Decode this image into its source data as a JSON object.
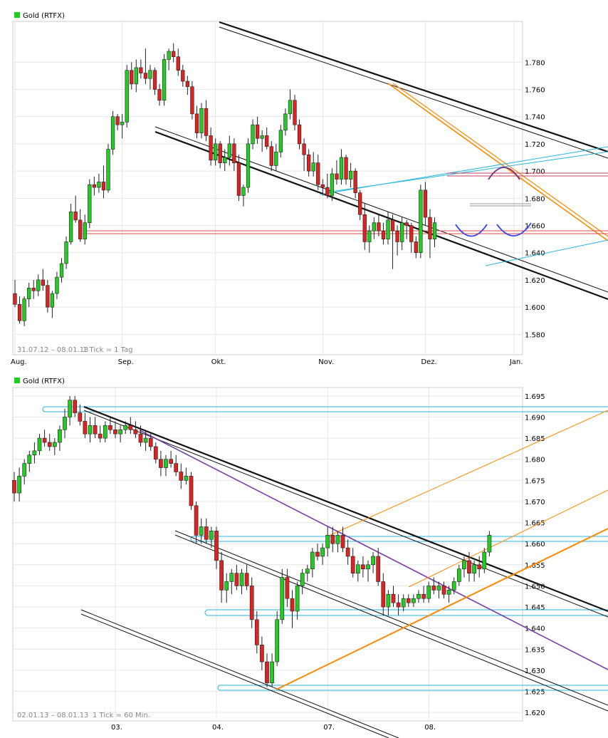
{
  "chart_data": [
    {
      "type": "candlestick",
      "title": "Gold (RTFX)",
      "legend": {
        "label": "Gold (RTFX)",
        "color": "#22cc22"
      },
      "period_label": "31.07.12 – 08.01.13",
      "tick_label": "1 Tick = 1 Tag",
      "ylim": [
        1565,
        1810
      ],
      "y_ticks": [
        1580,
        1600,
        1620,
        1640,
        1660,
        1680,
        1700,
        1720,
        1740,
        1760,
        1780
      ],
      "y_tick_labels": [
        "1.580",
        "1.600",
        "1.620",
        "1.640",
        "1.660",
        "1.680",
        "1.700",
        "1.720",
        "1.740",
        "1.760",
        "1.780"
      ],
      "x_ticks": [
        {
          "label": "Aug.",
          "index": 0
        },
        {
          "label": "Sep.",
          "index": 23
        },
        {
          "label": "Okt.",
          "index": 43
        },
        {
          "label": "Nov.",
          "index": 66
        },
        {
          "label": "Dez.",
          "index": 88
        },
        {
          "label": "Jan.",
          "index": 107
        }
      ],
      "colors": {
        "up": "#22cc22",
        "down": "#dd2222"
      },
      "candles": [
        [
          1610,
          1620,
          1600,
          1602
        ],
        [
          1602,
          1608,
          1588,
          1590
        ],
        [
          1590,
          1608,
          1586,
          1606
        ],
        [
          1606,
          1618,
          1600,
          1614
        ],
        [
          1614,
          1620,
          1606,
          1612
        ],
        [
          1612,
          1624,
          1608,
          1620
        ],
        [
          1620,
          1628,
          1612,
          1616
        ],
        [
          1616,
          1620,
          1596,
          1600
        ],
        [
          1600,
          1612,
          1592,
          1610
        ],
        [
          1610,
          1626,
          1606,
          1622
        ],
        [
          1622,
          1636,
          1618,
          1632
        ],
        [
          1632,
          1652,
          1628,
          1648
        ],
        [
          1648,
          1676,
          1646,
          1670
        ],
        [
          1670,
          1682,
          1662,
          1664
        ],
        [
          1664,
          1672,
          1648,
          1650
        ],
        [
          1650,
          1668,
          1646,
          1662
        ],
        [
          1662,
          1694,
          1658,
          1690
        ],
        [
          1690,
          1696,
          1682,
          1688
        ],
        [
          1688,
          1698,
          1684,
          1692
        ],
        [
          1692,
          1704,
          1680,
          1686
        ],
        [
          1686,
          1720,
          1684,
          1716
        ],
        [
          1716,
          1744,
          1712,
          1740
        ],
        [
          1740,
          1742,
          1730,
          1734
        ],
        [
          1734,
          1742,
          1724,
          1736
        ],
        [
          1736,
          1778,
          1732,
          1774
        ],
        [
          1774,
          1780,
          1760,
          1764
        ],
        [
          1764,
          1782,
          1758,
          1776
        ],
        [
          1776,
          1782,
          1768,
          1772
        ],
        [
          1772,
          1790,
          1764,
          1768
        ],
        [
          1768,
          1778,
          1760,
          1774
        ],
        [
          1774,
          1776,
          1756,
          1760
        ],
        [
          1760,
          1764,
          1748,
          1752
        ],
        [
          1752,
          1786,
          1748,
          1782
        ],
        [
          1782,
          1790,
          1774,
          1788
        ],
        [
          1788,
          1794,
          1780,
          1784
        ],
        [
          1784,
          1790,
          1770,
          1774
        ],
        [
          1774,
          1778,
          1762,
          1766
        ],
        [
          1766,
          1770,
          1756,
          1762
        ],
        [
          1762,
          1766,
          1738,
          1742
        ],
        [
          1742,
          1748,
          1724,
          1728
        ],
        [
          1728,
          1750,
          1724,
          1746
        ],
        [
          1746,
          1752,
          1722,
          1726
        ],
        [
          1726,
          1732,
          1704,
          1708
        ],
        [
          1708,
          1724,
          1704,
          1720
        ],
        [
          1720,
          1722,
          1702,
          1706
        ],
        [
          1706,
          1716,
          1700,
          1710
        ],
        [
          1710,
          1726,
          1704,
          1720
        ],
        [
          1720,
          1724,
          1700,
          1706
        ],
        [
          1706,
          1712,
          1678,
          1682
        ],
        [
          1682,
          1690,
          1674,
          1688
        ],
        [
          1688,
          1724,
          1684,
          1720
        ],
        [
          1720,
          1738,
          1716,
          1734
        ],
        [
          1734,
          1740,
          1720,
          1724
        ],
        [
          1724,
          1730,
          1714,
          1726
        ],
        [
          1726,
          1732,
          1716,
          1718
        ],
        [
          1718,
          1722,
          1700,
          1704
        ],
        [
          1704,
          1720,
          1700,
          1714
        ],
        [
          1714,
          1734,
          1710,
          1730
        ],
        [
          1730,
          1746,
          1726,
          1742
        ],
        [
          1742,
          1760,
          1738,
          1752
        ],
        [
          1752,
          1756,
          1730,
          1734
        ],
        [
          1734,
          1738,
          1716,
          1720
        ],
        [
          1720,
          1724,
          1700,
          1712
        ],
        [
          1712,
          1716,
          1696,
          1700
        ],
        [
          1700,
          1714,
          1696,
          1706
        ],
        [
          1706,
          1712,
          1686,
          1690
        ],
        [
          1690,
          1694,
          1682,
          1688
        ],
        [
          1688,
          1698,
          1680,
          1682
        ],
        [
          1682,
          1702,
          1678,
          1698
        ],
        [
          1698,
          1708,
          1690,
          1694
        ],
        [
          1694,
          1716,
          1690,
          1710
        ],
        [
          1710,
          1712,
          1690,
          1694
        ],
        [
          1694,
          1706,
          1688,
          1700
        ],
        [
          1700,
          1702,
          1680,
          1684
        ],
        [
          1684,
          1686,
          1664,
          1668
        ],
        [
          1668,
          1676,
          1642,
          1648
        ],
        [
          1648,
          1660,
          1640,
          1656
        ],
        [
          1656,
          1666,
          1650,
          1662
        ],
        [
          1662,
          1668,
          1652,
          1656
        ],
        [
          1656,
          1662,
          1646,
          1650
        ],
        [
          1650,
          1670,
          1646,
          1664
        ],
        [
          1664,
          1668,
          1628,
          1656
        ],
        [
          1656,
          1660,
          1638,
          1648
        ],
        [
          1648,
          1666,
          1642,
          1662
        ],
        [
          1662,
          1664,
          1650,
          1660
        ],
        [
          1660,
          1662,
          1640,
          1648
        ],
        [
          1648,
          1652,
          1636,
          1640
        ],
        [
          1640,
          1690,
          1636,
          1686
        ],
        [
          1686,
          1692,
          1660,
          1666
        ],
        [
          1666,
          1672,
          1636,
          1650
        ],
        [
          1650,
          1666,
          1644,
          1662
        ]
      ],
      "indicators": {
        "support_levels_red": [
          1646,
          1686
        ],
        "resistance_level_gray": 1666
      }
    },
    {
      "type": "candlestick",
      "title": "Gold (RTFX)",
      "legend": {
        "label": "Gold (RTFX)",
        "color": "#22cc22"
      },
      "period_label": "02.01.13 – 08.01.13",
      "tick_label": "1 Tick = 60 Min.",
      "ylim": [
        1618,
        1697
      ],
      "y_ticks": [
        1620,
        1625,
        1630,
        1635,
        1640,
        1645,
        1650,
        1655,
        1660,
        1665,
        1670,
        1675,
        1680,
        1685,
        1690,
        1695
      ],
      "y_tick_labels": [
        "1.620",
        "1.625",
        "1.630",
        "1.635",
        "1.640",
        "1.645",
        "1.650",
        "1.655",
        "1.660",
        "1.665",
        "1.670",
        "1.675",
        "1.680",
        "1.685",
        "1.690",
        "1.695"
      ],
      "x_ticks": [
        {
          "label": "03.",
          "index": 20
        },
        {
          "label": "04.",
          "index": 40
        },
        {
          "label": "07.",
          "index": 62
        },
        {
          "label": "08.",
          "index": 82
        }
      ],
      "colors": {
        "up": "#22cc22",
        "down": "#dd2222"
      },
      "candles": [
        [
          1675,
          1677,
          1670,
          1672
        ],
        [
          1672,
          1678,
          1670,
          1676
        ],
        [
          1676,
          1680,
          1674,
          1679
        ],
        [
          1679,
          1682,
          1677,
          1681
        ],
        [
          1681,
          1684,
          1679,
          1682
        ],
        [
          1682,
          1686,
          1681,
          1685
        ],
        [
          1685,
          1687,
          1683,
          1684
        ],
        [
          1684,
          1686,
          1682,
          1683
        ],
        [
          1683,
          1685,
          1681,
          1684
        ],
        [
          1684,
          1688,
          1682,
          1687
        ],
        [
          1687,
          1692,
          1685,
          1690
        ],
        [
          1690,
          1695,
          1688,
          1694
        ],
        [
          1694,
          1695,
          1690,
          1691
        ],
        [
          1691,
          1693,
          1688,
          1689
        ],
        [
          1689,
          1691,
          1685,
          1686
        ],
        [
          1686,
          1690,
          1684,
          1688
        ],
        [
          1688,
          1690,
          1685,
          1686
        ],
        [
          1686,
          1688,
          1684,
          1685
        ],
        [
          1685,
          1689,
          1684,
          1688
        ],
        [
          1688,
          1690,
          1686,
          1687
        ],
        [
          1687,
          1689,
          1685,
          1686
        ],
        [
          1686,
          1688,
          1684,
          1687
        ],
        [
          1687,
          1689,
          1686,
          1688
        ],
        [
          1688,
          1690,
          1686,
          1687
        ],
        [
          1687,
          1689,
          1685,
          1686
        ],
        [
          1686,
          1688,
          1683,
          1684
        ],
        [
          1684,
          1687,
          1682,
          1685
        ],
        [
          1685,
          1686,
          1682,
          1683
        ],
        [
          1683,
          1684,
          1679,
          1680
        ],
        [
          1680,
          1682,
          1676,
          1678
        ],
        [
          1678,
          1681,
          1676,
          1680
        ],
        [
          1680,
          1682,
          1678,
          1679
        ],
        [
          1679,
          1681,
          1676,
          1677
        ],
        [
          1677,
          1679,
          1673,
          1675
        ],
        [
          1675,
          1678,
          1674,
          1676
        ],
        [
          1676,
          1677,
          1668,
          1669
        ],
        [
          1669,
          1670,
          1660,
          1662
        ],
        [
          1662,
          1666,
          1660,
          1664
        ],
        [
          1664,
          1666,
          1660,
          1661
        ],
        [
          1661,
          1664,
          1659,
          1663
        ],
        [
          1663,
          1664,
          1654,
          1656
        ],
        [
          1656,
          1658,
          1646,
          1649
        ],
        [
          1649,
          1653,
          1646,
          1651
        ],
        [
          1651,
          1654,
          1648,
          1653
        ],
        [
          1653,
          1655,
          1649,
          1650
        ],
        [
          1650,
          1654,
          1648,
          1653
        ],
        [
          1653,
          1655,
          1649,
          1650
        ],
        [
          1650,
          1652,
          1640,
          1642
        ],
        [
          1642,
          1644,
          1634,
          1636
        ],
        [
          1636,
          1638,
          1630,
          1632
        ],
        [
          1632,
          1634,
          1626,
          1627
        ],
        [
          1627,
          1634,
          1626,
          1632
        ],
        [
          1632,
          1644,
          1631,
          1642
        ],
        [
          1642,
          1654,
          1641,
          1652
        ],
        [
          1652,
          1654,
          1645,
          1647
        ],
        [
          1647,
          1649,
          1640,
          1644
        ],
        [
          1644,
          1651,
          1642,
          1650
        ],
        [
          1650,
          1654,
          1648,
          1653
        ],
        [
          1653,
          1655,
          1651,
          1654
        ],
        [
          1654,
          1659,
          1652,
          1658
        ],
        [
          1658,
          1660,
          1656,
          1657
        ],
        [
          1657,
          1660,
          1655,
          1659
        ],
        [
          1659,
          1664,
          1657,
          1662
        ],
        [
          1662,
          1664,
          1658,
          1660
        ],
        [
          1660,
          1663,
          1658,
          1662
        ],
        [
          1662,
          1664,
          1658,
          1659
        ],
        [
          1659,
          1661,
          1655,
          1657
        ],
        [
          1657,
          1659,
          1652,
          1653
        ],
        [
          1653,
          1656,
          1651,
          1655
        ],
        [
          1655,
          1657,
          1652,
          1654
        ],
        [
          1654,
          1656,
          1651,
          1655
        ],
        [
          1655,
          1658,
          1653,
          1657
        ],
        [
          1657,
          1659,
          1650,
          1651
        ],
        [
          1651,
          1653,
          1643,
          1645
        ],
        [
          1645,
          1649,
          1643,
          1648
        ],
        [
          1648,
          1650,
          1645,
          1646
        ],
        [
          1646,
          1648,
          1643,
          1645
        ],
        [
          1645,
          1648,
          1644,
          1647
        ],
        [
          1647,
          1648,
          1645,
          1646
        ],
        [
          1646,
          1648,
          1645,
          1647
        ],
        [
          1647,
          1649,
          1646,
          1648
        ],
        [
          1648,
          1650,
          1646,
          1647
        ],
        [
          1647,
          1651,
          1646,
          1650
        ],
        [
          1650,
          1652,
          1648,
          1649
        ],
        [
          1649,
          1651,
          1647,
          1650
        ],
        [
          1650,
          1651,
          1647,
          1648
        ],
        [
          1648,
          1650,
          1646,
          1649
        ],
        [
          1649,
          1652,
          1648,
          1651
        ],
        [
          1651,
          1655,
          1650,
          1654
        ],
        [
          1654,
          1657,
          1652,
          1656
        ],
        [
          1656,
          1658,
          1651,
          1653
        ],
        [
          1653,
          1656,
          1651,
          1655
        ],
        [
          1655,
          1657,
          1652,
          1654
        ],
        [
          1654,
          1659,
          1653,
          1658
        ],
        [
          1658,
          1663,
          1657,
          1662
        ]
      ],
      "indicators": {
        "horizontal_levels_cyan": [
          1625.5,
          1645,
          1662.5,
          1695
        ],
        "downtrend_black": [
          [
            11,
            1694.5
          ],
          [
            117,
            1645
          ]
        ],
        "downtrend_purple": [
          [
            26,
            1688
          ],
          [
            117,
            1630
          ]
        ],
        "uptrend_orange": [
          [
            51,
            1626
          ],
          [
            117,
            1665
          ]
        ],
        "upper_fan_orange": [
          [
            67,
            1660
          ],
          [
            117,
            1695
          ]
        ]
      }
    }
  ]
}
